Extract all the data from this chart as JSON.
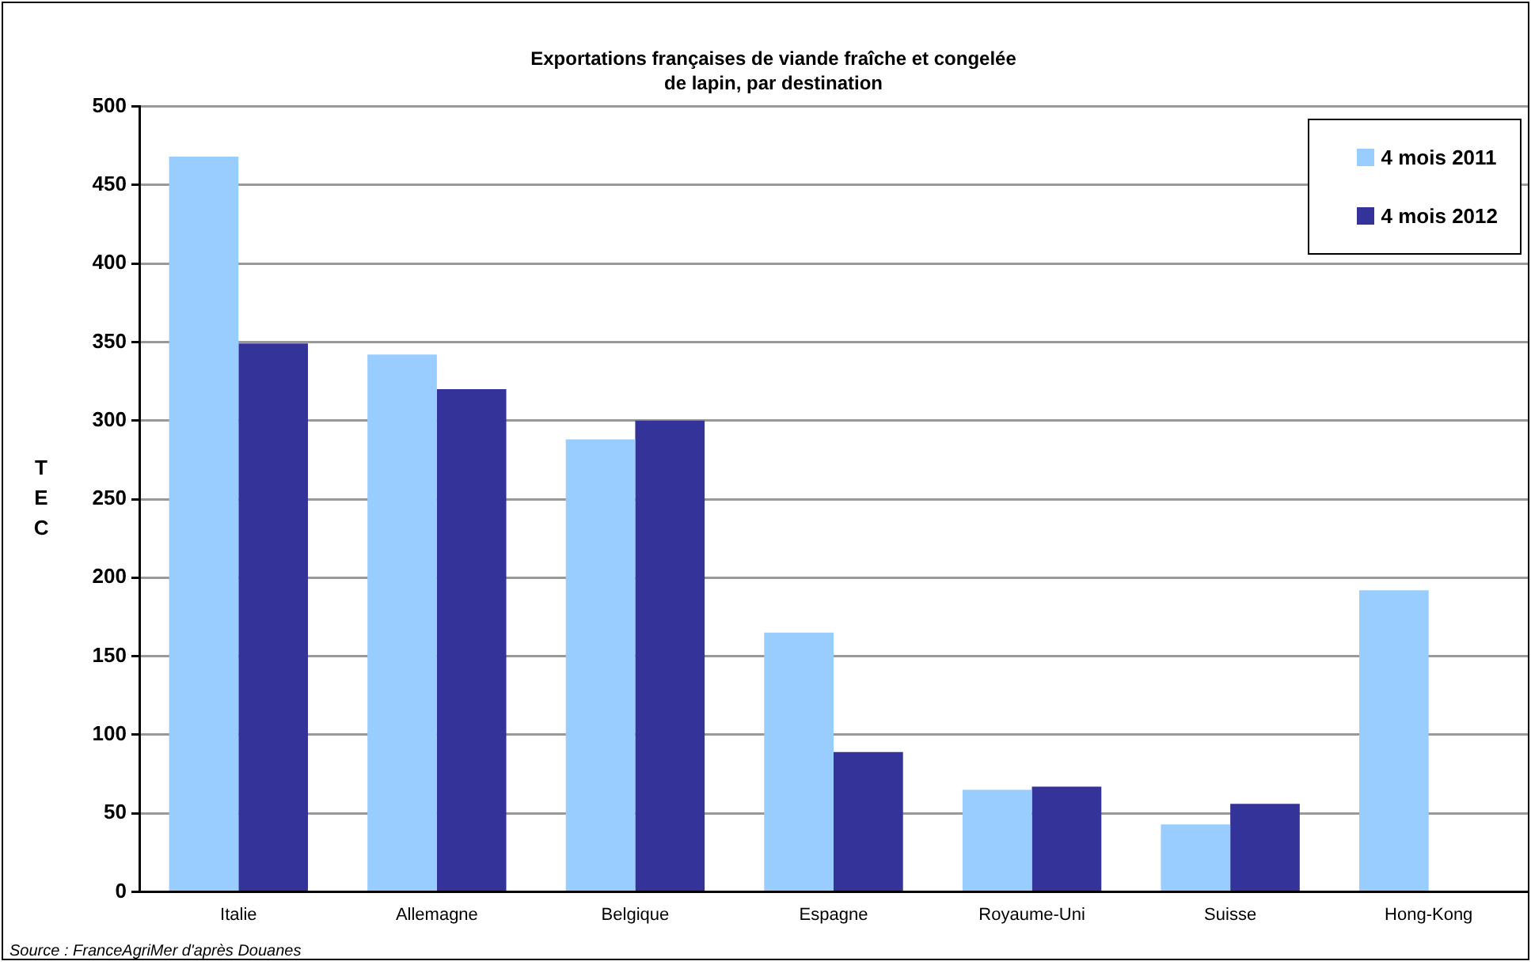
{
  "chart_data": {
    "type": "bar",
    "title": "Exportations françaises de viande fraîche et congelée\nde lapin, par destination",
    "ylabel": "TEC",
    "categories": [
      "Italie",
      "Allemagne",
      "Belgique",
      "Espagne",
      "Royaume-Uni",
      "Suisse",
      "Hong-Kong"
    ],
    "series": [
      {
        "name": "4 mois 2011",
        "color": "#99ccff",
        "values": [
          468,
          342,
          288,
          165,
          65,
          43,
          192
        ]
      },
      {
        "name": "4 mois 2012",
        "color": "#333399",
        "values": [
          349,
          320,
          300,
          89,
          67,
          56,
          null
        ]
      }
    ],
    "ylim": [
      0,
      500
    ],
    "yticks": [
      0,
      50,
      100,
      150,
      200,
      250,
      300,
      350,
      400,
      450,
      500
    ],
    "grid": "y",
    "legend": "top right",
    "annotations": [
      "Source : FranceAgriMer d'après Douanes"
    ]
  }
}
